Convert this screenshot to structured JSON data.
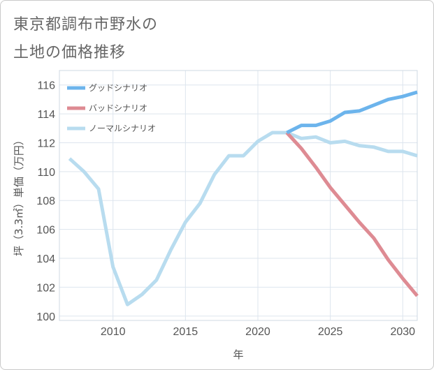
{
  "title_line1": "東京都調布市野水の",
  "title_line2": "土地の価格推移",
  "chart_data": {
    "type": "line",
    "xlabel": "年",
    "ylabel": "坪（3.3㎡）単価（万円）",
    "xlim": [
      2006.3,
      2031
    ],
    "ylim": [
      99.7,
      117
    ],
    "x_ticks": [
      2010,
      2015,
      2020,
      2025,
      2030
    ],
    "y_ticks": [
      100,
      102,
      104,
      106,
      108,
      110,
      112,
      114,
      116
    ],
    "grid": true,
    "legend_position": "top-left",
    "series": [
      {
        "name": "グッドシナリオ",
        "color": "#6cb4ec",
        "x": [
          2022,
          2023,
          2024,
          2025,
          2026,
          2027,
          2028,
          2029,
          2030,
          2031
        ],
        "y": [
          112.7,
          113.2,
          113.2,
          113.5,
          114.1,
          114.2,
          114.6,
          115.0,
          115.2,
          115.5
        ]
      },
      {
        "name": "バッドシナリオ",
        "color": "#de8b93",
        "x": [
          2022,
          2023,
          2024,
          2025,
          2026,
          2027,
          2028,
          2029,
          2030,
          2031
        ],
        "y": [
          112.7,
          111.6,
          110.3,
          108.9,
          107.7,
          106.5,
          105.4,
          103.9,
          102.6,
          101.4
        ]
      },
      {
        "name": "ノーマルシナリオ",
        "color": "#b8dcef",
        "x": [
          2007,
          2008,
          2009,
          2010,
          2011,
          2012,
          2013,
          2014,
          2015,
          2016,
          2017,
          2018,
          2019,
          2020,
          2021,
          2022,
          2023,
          2024,
          2025,
          2026,
          2027,
          2028,
          2029,
          2030,
          2031
        ],
        "y": [
          110.9,
          110.0,
          108.8,
          103.4,
          100.8,
          101.5,
          102.5,
          104.6,
          106.5,
          107.8,
          109.8,
          111.1,
          111.1,
          112.1,
          112.7,
          112.7,
          112.3,
          112.4,
          112.0,
          112.1,
          111.8,
          111.7,
          111.4,
          111.4,
          111.1
        ]
      }
    ]
  }
}
